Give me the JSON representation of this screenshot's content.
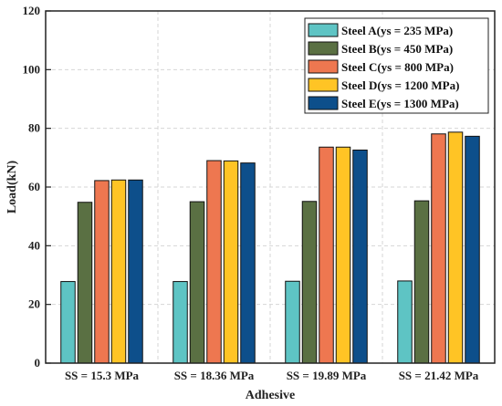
{
  "chart_data": {
    "type": "bar",
    "title": "",
    "xlabel": "Adhesive",
    "ylabel": "Load(kN)",
    "ylim": [
      0,
      120
    ],
    "yticks": [
      0,
      20,
      40,
      60,
      80,
      100,
      120
    ],
    "grid": true,
    "legend_position": "top-right",
    "categories": [
      "SS = 15.3 MPa",
      "SS = 18.36 MPa",
      "SS = 19.89 MPa",
      "SS = 21.42 MPa"
    ],
    "series": [
      {
        "name": "Steel A(ys = 235 MPa)",
        "color": "#5ec4c4",
        "values": [
          27.8,
          27.8,
          27.9,
          28.0
        ]
      },
      {
        "name": "Steel B(ys = 450 MPa)",
        "color": "#5a7043",
        "values": [
          54.8,
          55.0,
          55.1,
          55.3
        ]
      },
      {
        "name": "Steel C(ys = 800 MPa)",
        "color": "#ee7750",
        "values": [
          62.2,
          69.0,
          73.6,
          78.1
        ]
      },
      {
        "name": "Steel D(ys = 1200 MPa)",
        "color": "#ffc425",
        "values": [
          62.4,
          68.9,
          73.6,
          78.7
        ]
      },
      {
        "name": "Steel E(ys = 1300 MPa)",
        "color": "#0d4f8b",
        "values": [
          62.4,
          68.2,
          72.6,
          77.3
        ]
      }
    ]
  }
}
